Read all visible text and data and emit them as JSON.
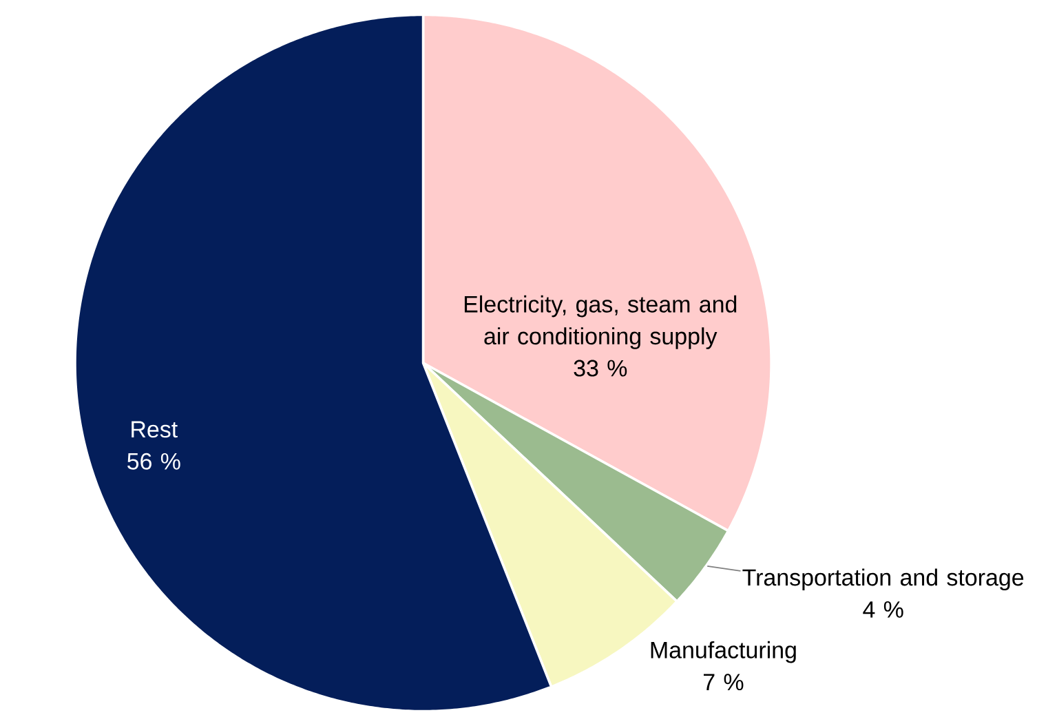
{
  "chart_data": {
    "type": "pie",
    "categories": [
      "Electricity, gas, steam and air conditioning supply",
      "Transportation and storage",
      "Manufacturing",
      "Rest"
    ],
    "values": [
      33,
      4,
      7,
      56
    ],
    "value_labels": [
      "33 %",
      "4 %",
      "7 %",
      "56 %"
    ],
    "colors": [
      "#ffcccc",
      "#9bbb8f",
      "#f7f7c0",
      "#041e5a"
    ]
  }
}
